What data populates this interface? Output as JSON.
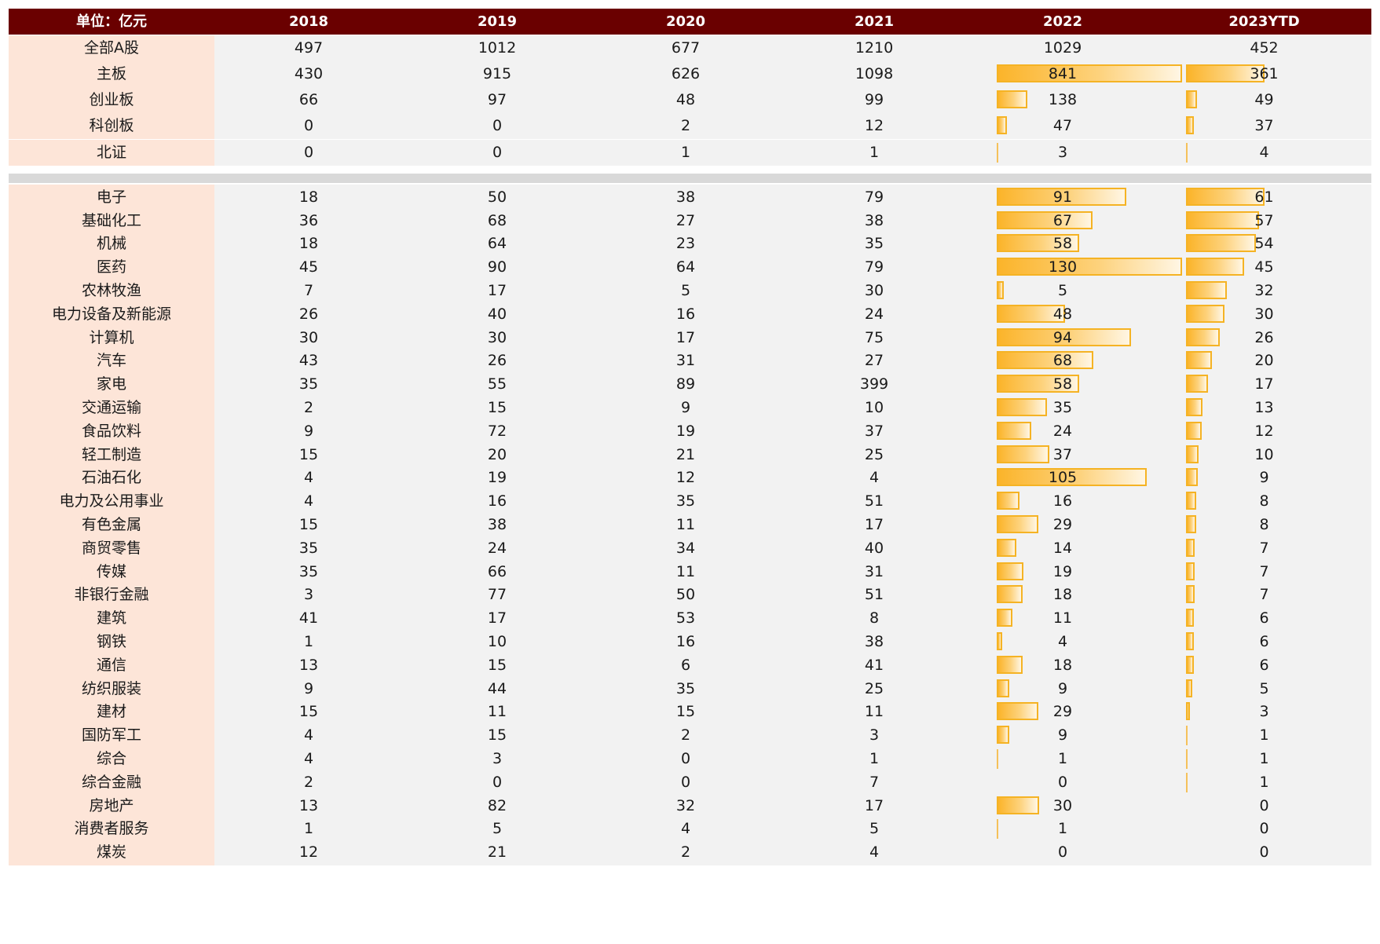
{
  "chart_data": {
    "type": "table",
    "unit_label": "单位：亿元",
    "columns": [
      "2018",
      "2019",
      "2020",
      "2021",
      "2022",
      "2023YTD"
    ],
    "market_rows": [
      {
        "label": "全部A股",
        "values": [
          497,
          1012,
          677,
          1210,
          1029,
          452
        ],
        "bars": false
      },
      {
        "label": "主板",
        "values": [
          430,
          915,
          626,
          1098,
          841,
          361
        ],
        "bars": true
      },
      {
        "label": "创业板",
        "values": [
          66,
          97,
          48,
          99,
          138,
          49
        ],
        "bars": true
      },
      {
        "label": "科创板",
        "values": [
          0,
          0,
          2,
          12,
          47,
          37
        ],
        "bars": true
      },
      {
        "label": "北证",
        "values": [
          0,
          0,
          1,
          1,
          3,
          4
        ],
        "bars": true
      }
    ],
    "industry_rows": [
      {
        "label": "电子",
        "values": [
          18,
          50,
          38,
          79,
          91,
          61
        ]
      },
      {
        "label": "基础化工",
        "values": [
          36,
          68,
          27,
          38,
          67,
          57
        ]
      },
      {
        "label": "机械",
        "values": [
          18,
          64,
          23,
          35,
          58,
          54
        ]
      },
      {
        "label": "医药",
        "values": [
          45,
          90,
          64,
          79,
          130,
          45
        ]
      },
      {
        "label": "农林牧渔",
        "values": [
          7,
          17,
          5,
          30,
          5,
          32
        ]
      },
      {
        "label": "电力设备及新能源",
        "values": [
          26,
          40,
          16,
          24,
          48,
          30
        ]
      },
      {
        "label": "计算机",
        "values": [
          30,
          30,
          17,
          75,
          94,
          26
        ]
      },
      {
        "label": "汽车",
        "values": [
          43,
          26,
          31,
          27,
          68,
          20
        ]
      },
      {
        "label": "家电",
        "values": [
          35,
          55,
          89,
          399,
          58,
          17
        ]
      },
      {
        "label": "交通运输",
        "values": [
          2,
          15,
          9,
          10,
          35,
          13
        ]
      },
      {
        "label": "食品饮料",
        "values": [
          9,
          72,
          19,
          37,
          24,
          12
        ]
      },
      {
        "label": "轻工制造",
        "values": [
          15,
          20,
          21,
          25,
          37,
          10
        ]
      },
      {
        "label": "石油石化",
        "values": [
          4,
          19,
          12,
          4,
          105,
          9
        ]
      },
      {
        "label": "电力及公用事业",
        "values": [
          4,
          16,
          35,
          51,
          16,
          8
        ]
      },
      {
        "label": "有色金属",
        "values": [
          15,
          38,
          11,
          17,
          29,
          8
        ]
      },
      {
        "label": "商贸零售",
        "values": [
          35,
          24,
          34,
          40,
          14,
          7
        ]
      },
      {
        "label": "传媒",
        "values": [
          35,
          66,
          11,
          31,
          19,
          7
        ]
      },
      {
        "label": "非银行金融",
        "values": [
          3,
          77,
          50,
          51,
          18,
          7
        ]
      },
      {
        "label": "建筑",
        "values": [
          41,
          17,
          53,
          8,
          11,
          6
        ]
      },
      {
        "label": "钢铁",
        "values": [
          1,
          10,
          16,
          38,
          4,
          6
        ]
      },
      {
        "label": "通信",
        "values": [
          13,
          15,
          6,
          41,
          18,
          6
        ]
      },
      {
        "label": "纺织服装",
        "values": [
          9,
          44,
          35,
          25,
          9,
          5
        ]
      },
      {
        "label": "建材",
        "values": [
          15,
          11,
          15,
          11,
          29,
          3
        ]
      },
      {
        "label": "国防军工",
        "values": [
          4,
          15,
          2,
          3,
          9,
          1
        ]
      },
      {
        "label": "综合",
        "values": [
          4,
          3,
          0,
          1,
          1,
          1
        ]
      },
      {
        "label": "综合金融",
        "values": [
          2,
          0,
          0,
          7,
          0,
          1
        ]
      },
      {
        "label": "房地产",
        "values": [
          13,
          82,
          32,
          17,
          30,
          0
        ]
      },
      {
        "label": "消费者服务",
        "values": [
          1,
          5,
          4,
          5,
          1,
          0
        ]
      },
      {
        "label": "煤炭",
        "values": [
          12,
          21,
          2,
          4,
          0,
          0
        ]
      }
    ],
    "bar_columns": [
      "2022",
      "2023YTD"
    ],
    "bar_color": "#f5b324",
    "header_color": "#6a0000",
    "label_bg_color": "#fde5d8"
  }
}
